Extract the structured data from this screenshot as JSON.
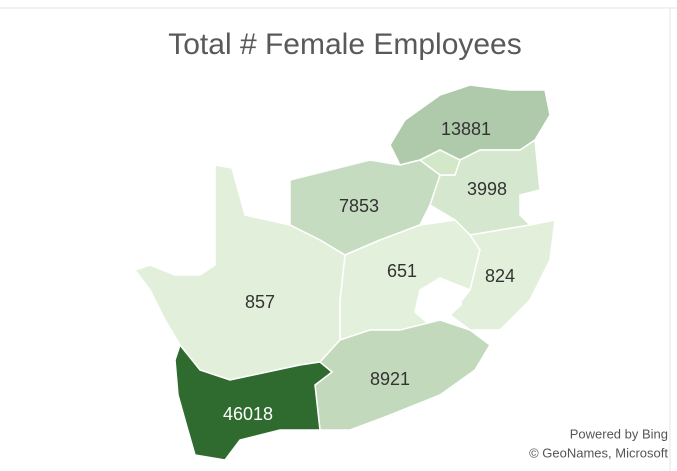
{
  "chart_data": {
    "type": "choropleth",
    "title": "Total # Female Employees",
    "values": [
      13881,
      3998,
      7853,
      651,
      824,
      857,
      8921,
      46018
    ],
    "color_scale": [
      "#e3f1dc",
      "#2f6b2f"
    ],
    "attribution": [
      "Powered by Bing",
      "© GeoNames, Microsoft"
    ]
  }
}
